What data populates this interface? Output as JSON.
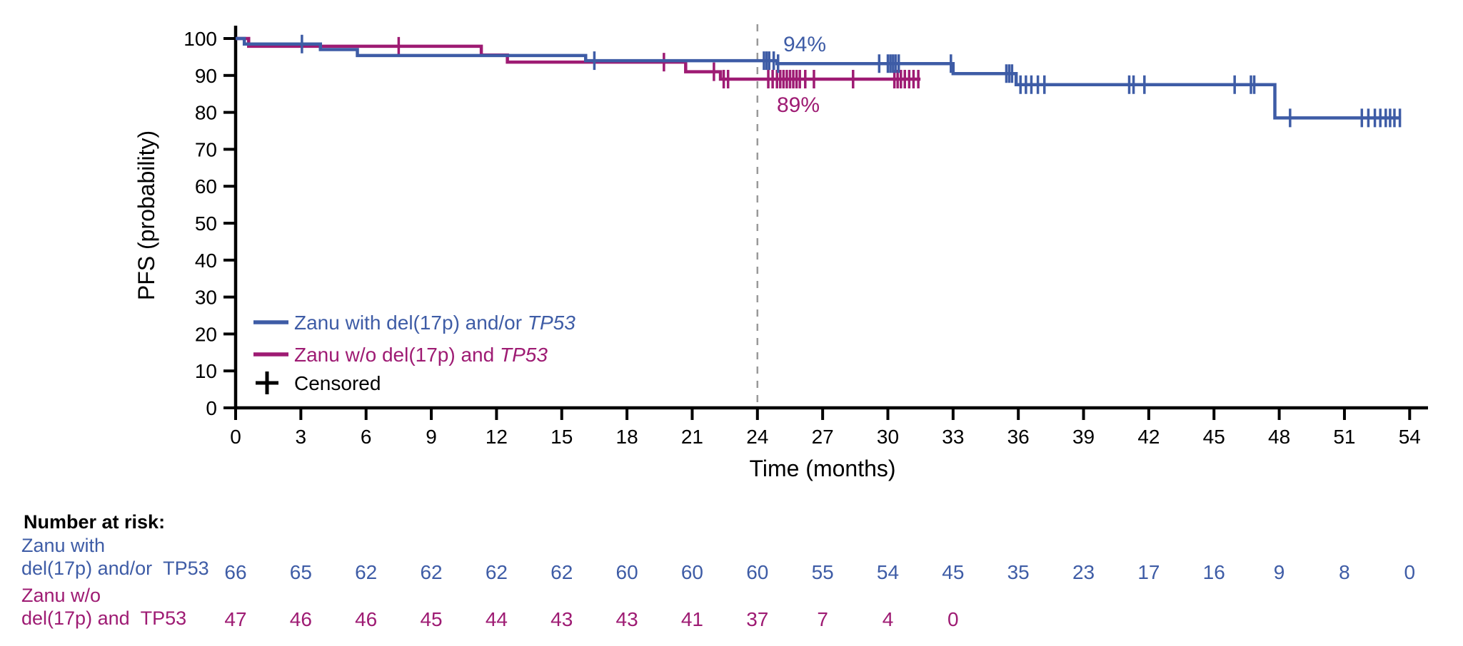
{
  "chart_data": {
    "type": "line",
    "subtype": "kaplan_meier_step",
    "title": "",
    "xlabel": "Time (months)",
    "ylabel": "PFS (probability)",
    "xlim": [
      0,
      54
    ],
    "ylim": [
      0,
      100
    ],
    "grid": false,
    "x_ticks": [
      0,
      3,
      6,
      9,
      12,
      15,
      18,
      21,
      24,
      27,
      30,
      33,
      36,
      39,
      42,
      45,
      48,
      51,
      54
    ],
    "y_ticks": [
      0,
      10,
      20,
      30,
      40,
      50,
      60,
      70,
      80,
      90,
      100
    ],
    "reference_line": {
      "x_month": 24,
      "style": "dashed",
      "color": "#999999"
    },
    "legend_censored": "Censored",
    "annotations": [
      {
        "text": "94%",
        "color": "#3E5CA6",
        "series": "Zanu with del(17p) and/or TP53",
        "at_month": 24
      },
      {
        "text": "89%",
        "color": "#9E1B73",
        "series": "Zanu w/o del(17p) and TP53",
        "at_month": 24
      }
    ],
    "series": [
      {
        "name": "Zanu with del(17p) and/or TP53",
        "legend_label": "Zanu with del(17p) and/or ",
        "legend_label_italic": "TP53",
        "color": "#3E5CA6",
        "pfs_at_24mo": "94%",
        "steps": [
          [
            0,
            100
          ],
          [
            0.4,
            98.5
          ],
          [
            3.9,
            97
          ],
          [
            5.6,
            95.4
          ],
          [
            16.1,
            94
          ],
          [
            24.9,
            93.2
          ],
          [
            33,
            90.5
          ],
          [
            35.9,
            87.5
          ],
          [
            47.8,
            78.5
          ]
        ],
        "end_month": 53.6,
        "censor_months": [
          3.05,
          16.5,
          24.3,
          24.42,
          24.54,
          24.75,
          24.95,
          29.6,
          30.0,
          30.12,
          30.24,
          30.36,
          30.5,
          32.9,
          35.45,
          35.58,
          35.71,
          36.1,
          36.35,
          36.6,
          36.9,
          37.2,
          41.1,
          41.3,
          41.8,
          45.95,
          46.7,
          46.85,
          48.5,
          51.8,
          52.1,
          52.4,
          52.65,
          52.9,
          53.1,
          53.3,
          53.55
        ]
      },
      {
        "name": "Zanu w/o del(17p) and TP53",
        "legend_label": "Zanu w/o del(17p) and ",
        "legend_label_italic": "TP53",
        "color": "#9E1B73",
        "pfs_at_24mo": "89%",
        "steps": [
          [
            0,
            100
          ],
          [
            0.6,
            97.9
          ],
          [
            11.3,
            95.5
          ],
          [
            12.5,
            93.6
          ],
          [
            20.7,
            91
          ],
          [
            22.3,
            89
          ]
        ],
        "end_month": 31.5,
        "censor_months": [
          7.5,
          19.7,
          22.0,
          22.45,
          22.65,
          24.5,
          24.7,
          24.9,
          25.05,
          25.2,
          25.35,
          25.5,
          25.65,
          25.8,
          25.95,
          26.2,
          26.6,
          28.4,
          30.3,
          30.45,
          30.6,
          30.78,
          30.98,
          31.18,
          31.4
        ]
      }
    ],
    "risk_table": {
      "header": "Number at risk:",
      "months": [
        0,
        3,
        6,
        9,
        12,
        15,
        18,
        21,
        24,
        27,
        30,
        33,
        36,
        39,
        42,
        45,
        48,
        51,
        54
      ],
      "rows": [
        {
          "label_lines": [
            "Zanu with",
            "del(17p) and/or  TP53"
          ],
          "color": "#3E5CA6",
          "values": [
            66,
            65,
            62,
            62,
            62,
            62,
            60,
            60,
            60,
            55,
            54,
            45,
            35,
            23,
            17,
            16,
            9,
            8,
            0
          ]
        },
        {
          "label_lines": [
            "Zanu w/o",
            "del(17p) and  TP53"
          ],
          "color": "#9E1B73",
          "values": [
            47,
            46,
            46,
            45,
            44,
            43,
            43,
            41,
            37,
            7,
            4,
            0
          ]
        }
      ]
    }
  }
}
